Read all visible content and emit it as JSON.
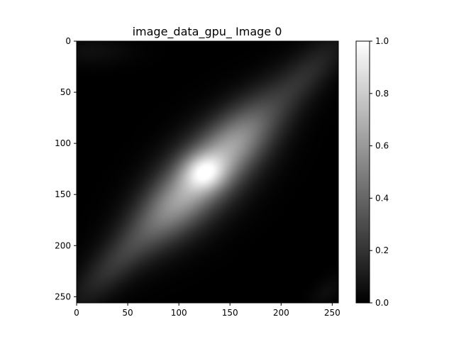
{
  "chart_data": {
    "type": "heatmap",
    "title": "image_data_gpu_ Image 0",
    "xlabel": "",
    "ylabel": "",
    "colormap": "gray",
    "x_ticks": [
      0,
      50,
      100,
      150,
      200,
      250
    ],
    "y_ticks": [
      0,
      50,
      100,
      150,
      200,
      250
    ],
    "xlim": [
      0,
      256
    ],
    "ylim": [
      256,
      0
    ],
    "colorbar": {
      "ticks": [
        "0.0",
        "0.2",
        "0.4",
        "0.6",
        "0.8",
        "1.0"
      ],
      "range": [
        0,
        1
      ]
    },
    "blobs": [
      {
        "cx": 127,
        "cy": 127,
        "sx": 78,
        "sy": 18,
        "angle_deg": -45,
        "amp": 0.38
      },
      {
        "cx": 125,
        "cy": 132,
        "sx": 46,
        "sy": 26,
        "angle_deg": -45,
        "amp": 0.28
      },
      {
        "cx": 125,
        "cy": 128,
        "sx": 14,
        "sy": 12,
        "angle_deg": 0,
        "amp": 0.34
      },
      {
        "cx": 160,
        "cy": 95,
        "sx": 30,
        "sy": 20,
        "angle_deg": -45,
        "amp": 0.12
      },
      {
        "cx": 95,
        "cy": 165,
        "sx": 30,
        "sy": 20,
        "angle_deg": -45,
        "amp": 0.1
      },
      {
        "cx": 35,
        "cy": 220,
        "sx": 38,
        "sy": 12,
        "angle_deg": -45,
        "amp": 0.12
      },
      {
        "cx": 230,
        "cy": 28,
        "sx": 34,
        "sy": 12,
        "angle_deg": -45,
        "amp": 0.1
      },
      {
        "cx": 15,
        "cy": 10,
        "sx": 28,
        "sy": 10,
        "angle_deg": 0,
        "amp": 0.06
      },
      {
        "cx": 245,
        "cy": 245,
        "sx": 16,
        "sy": 8,
        "angle_deg": -45,
        "amp": 0.05
      }
    ]
  }
}
